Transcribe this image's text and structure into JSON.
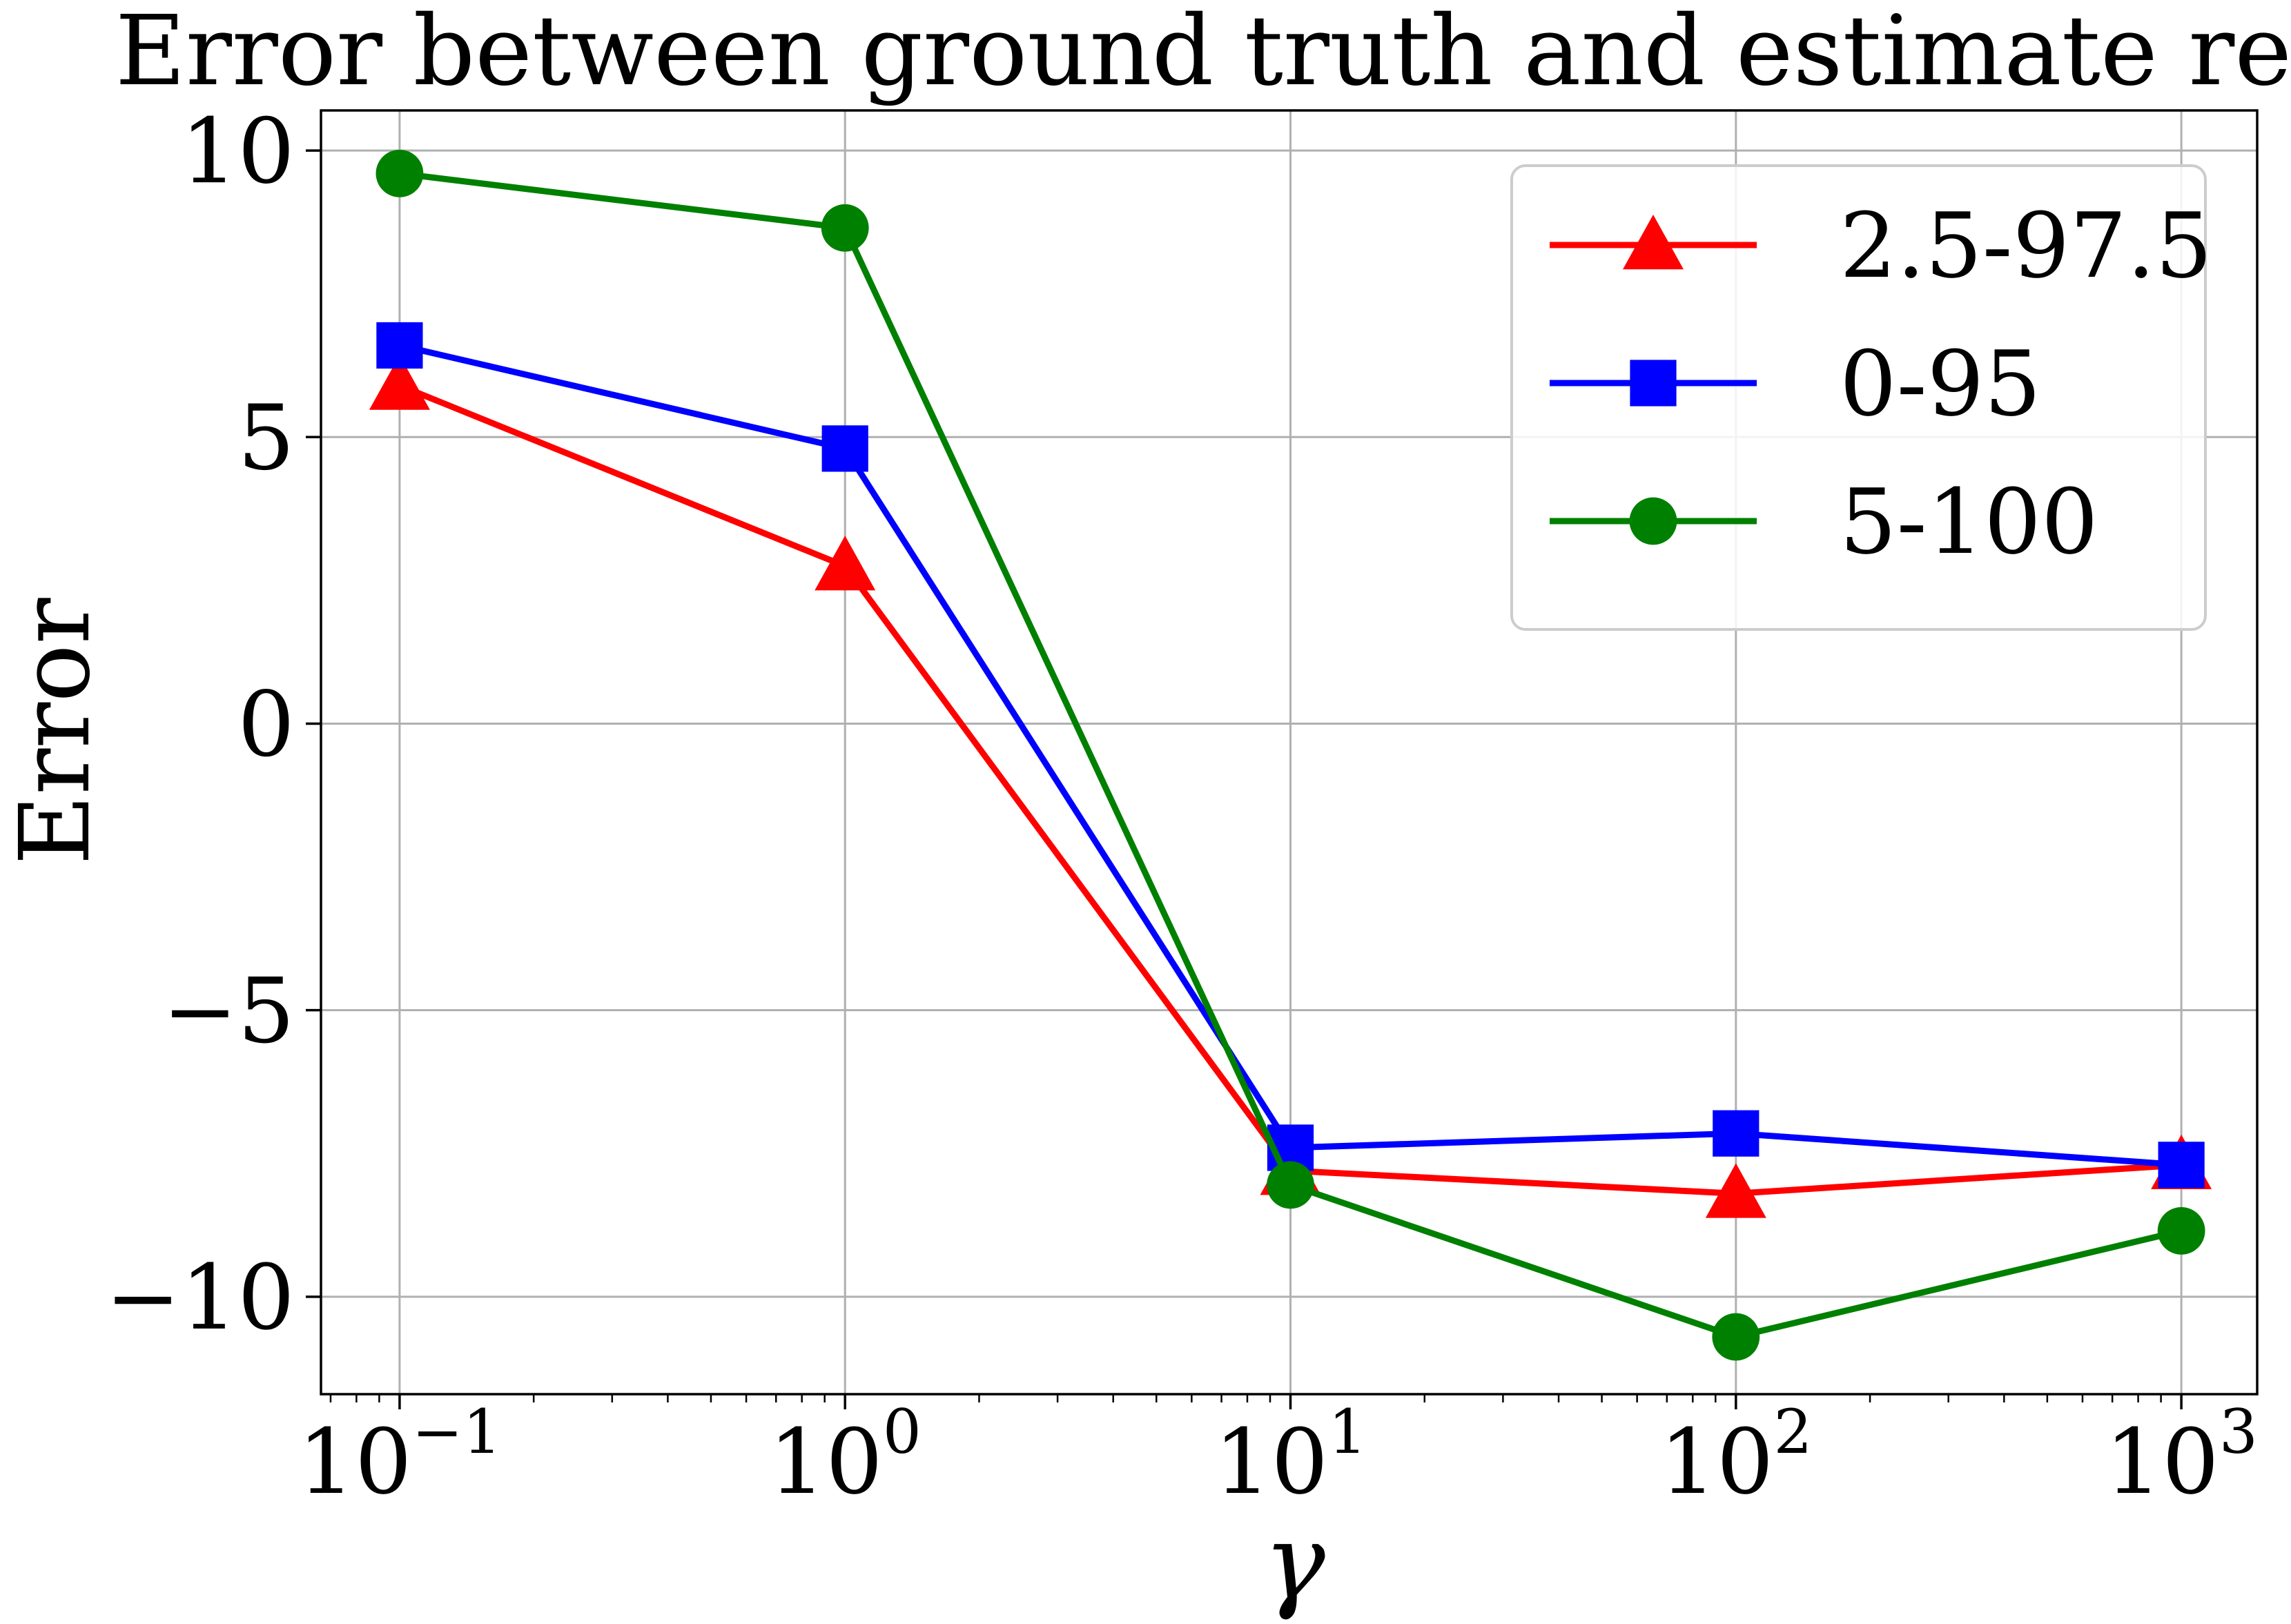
{
  "chart_data": {
    "type": "line",
    "title": "Error between ground truth and estimate result",
    "xlabel": "γ",
    "ylabel": "Error",
    "xscale": "log",
    "xlim": [
      0.0666,
      1480
    ],
    "ylim": [
      -11.7,
      10.7
    ],
    "grid": true,
    "legend_position": "top-right",
    "x": [
      0.1,
      1,
      10,
      100,
      1000
    ],
    "x_ticks": [
      {
        "value": 0.1,
        "base": "10",
        "exp": "−1"
      },
      {
        "value": 1,
        "base": "10",
        "exp": "0"
      },
      {
        "value": 10,
        "base": "10",
        "exp": "1"
      },
      {
        "value": 100,
        "base": "10",
        "exp": "2"
      },
      {
        "value": 1000,
        "base": "10",
        "exp": "3"
      }
    ],
    "y_ticks": [
      {
        "value": 10,
        "label": "10"
      },
      {
        "value": 5,
        "label": "5"
      },
      {
        "value": 0,
        "label": "0"
      },
      {
        "value": -5,
        "label": "−5"
      },
      {
        "value": -10,
        "label": "−10"
      }
    ],
    "series": [
      {
        "name": "2.5-97.5",
        "color": "#ff0000",
        "marker": "triangle",
        "values": [
          5.9,
          2.75,
          -7.8,
          -8.2,
          -7.7
        ]
      },
      {
        "name": "0-95",
        "color": "#0000ff",
        "marker": "square",
        "values": [
          6.6,
          4.8,
          -7.4,
          -7.15,
          -7.7
        ]
      },
      {
        "name": "5-100",
        "color": "#008000",
        "marker": "circle",
        "values": [
          9.6,
          8.65,
          -8.05,
          -10.7,
          -8.85
        ]
      }
    ]
  }
}
